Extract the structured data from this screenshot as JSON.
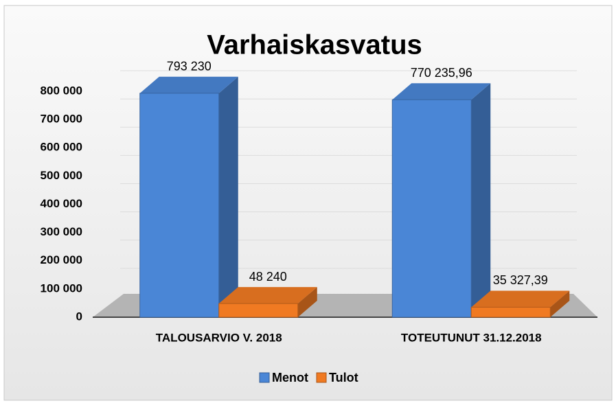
{
  "chart_data": {
    "type": "bar3d",
    "title": "Varhaiskasvatus",
    "categories": [
      "TALOUSARVIO V. 2018",
      "TOTEUTUNUT 31.12.2018"
    ],
    "series": [
      {
        "name": "Menot",
        "color": "#4a86d6",
        "values": [
          793230,
          770235.96
        ],
        "value_labels": [
          "793 230",
          "770 235,96"
        ]
      },
      {
        "name": "Tulot",
        "color": "#f07a22",
        "values": [
          48240,
          35327.39
        ],
        "value_labels": [
          "48 240",
          "35 327,39"
        ]
      }
    ],
    "ylim": [
      0,
      800000
    ],
    "yticks": [
      0,
      {
        "value": 100000,
        "label": "100 000"
      },
      {
        "value": 200000,
        "label": "200 000"
      },
      {
        "value": 300000,
        "label": "300 000"
      },
      {
        "value": 400000,
        "label": "400 000"
      },
      {
        "value": 500000,
        "label": "500 000"
      },
      {
        "value": 600000,
        "label": "600 000"
      },
      {
        "value": 700000,
        "label": "700 000"
      },
      {
        "value": 800000,
        "label": "800 000"
      }
    ],
    "grid": true,
    "legend": "bottom"
  }
}
